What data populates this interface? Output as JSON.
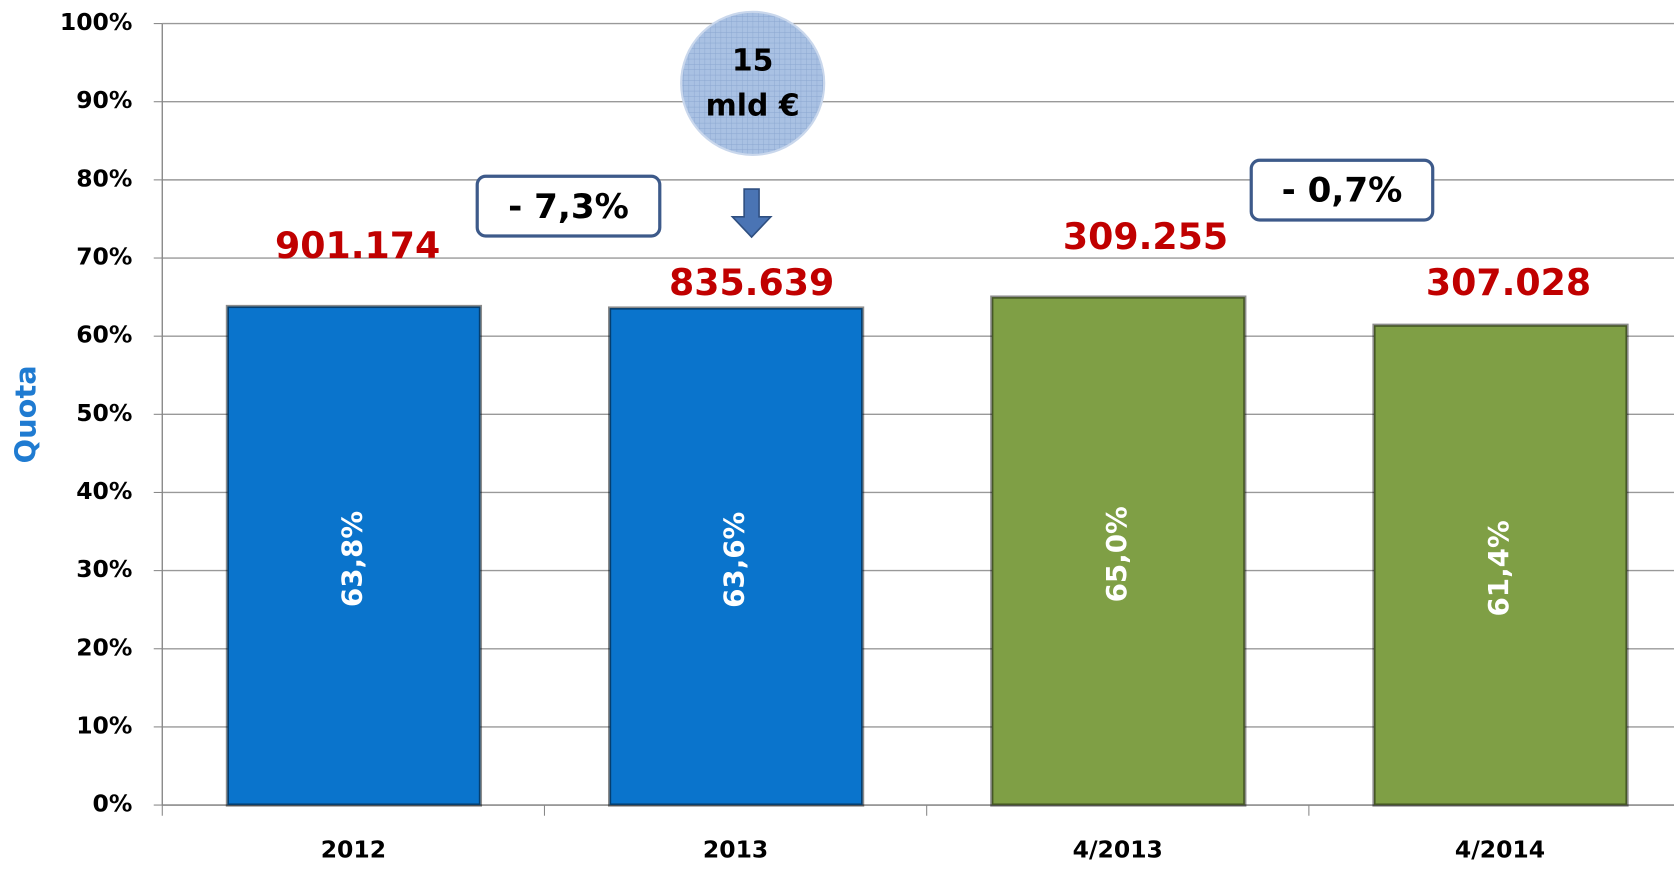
{
  "chart_data": {
    "type": "bar",
    "y_axis_label": "Quota",
    "categories": [
      "2012",
      "2013",
      "4/2013",
      "4/2014"
    ],
    "values": [
      63.8,
      63.6,
      65.0,
      61.4
    ],
    "value_labels": [
      "63,8%",
      "63,6%",
      "65,0%",
      "61,4%"
    ],
    "colors": [
      "#0a74cc",
      "#0a74cc",
      "#7f9f45",
      "#7f9f45"
    ],
    "ylim": [
      0,
      100
    ],
    "yticks": [
      {
        "value": 0,
        "label": "0%"
      },
      {
        "value": 10,
        "label": "10%"
      },
      {
        "value": 20,
        "label": "20%"
      },
      {
        "value": 30,
        "label": "30%"
      },
      {
        "value": 40,
        "label": "40%"
      },
      {
        "value": 50,
        "label": "50%"
      },
      {
        "value": 60,
        "label": "60%"
      },
      {
        "value": 70,
        "label": "70%"
      },
      {
        "value": 80,
        "label": "80%"
      },
      {
        "value": 90,
        "label": "90%"
      },
      {
        "value": 100,
        "label": "100%"
      }
    ],
    "grid": true,
    "top_labels": [
      "901.174",
      "835.639",
      "309.255",
      "307.028"
    ],
    "change_boxes": [
      "- 7,3%",
      "- 0,7%"
    ],
    "bubble": [
      "15",
      "mld €"
    ]
  }
}
